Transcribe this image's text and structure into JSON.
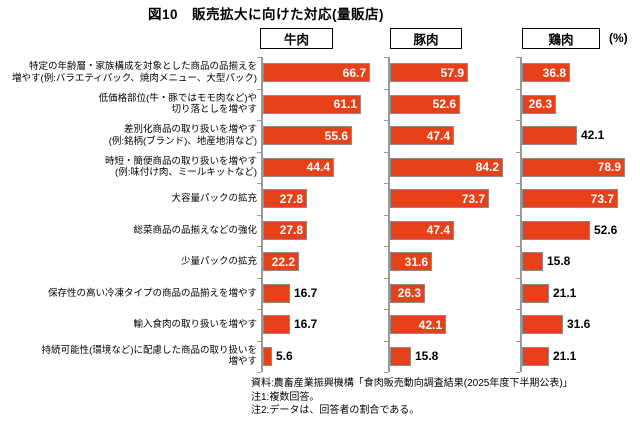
{
  "title": "図10　販売拡大に向けた対応(量販店)",
  "unit_label": "(%)",
  "chart_data": {
    "type": "bar",
    "orientation": "horizontal",
    "value_unit": "%",
    "xlim": [
      0,
      100
    ],
    "grid": false,
    "legend_position": "top",
    "bar_color": "#E64119",
    "bar_border_color": "#8C8C8C",
    "axis_color": "#999999",
    "categories": [
      "特定の年齢層・家族構成を対象とした商品の品揃えを増やす(例:バラエティパック、焼肉メニュー、大型パック)",
      "低価格部位(牛・豚ではモモ肉など)や切り落としを増やす",
      "差別化商品の取り扱いを増やす(例:銘柄(ブランド)、地産地消など)",
      "時短・簡便商品の取り扱いを増やす(例:味付け肉、ミールキットなど)",
      "大容量パックの拡充",
      "総菜商品の品揃えなどの強化",
      "少量パックの拡充",
      "保存性の高い冷凍タイプの商品の品揃えを増やす",
      "輸入食肉の取り扱いを増やす",
      "持続可能性(環境など)に配慮した商品の取り扱いを増やす"
    ],
    "category_lines": [
      [
        "特定の年齢層・家族構成を対象とした商品の品揃えを",
        "増やす(例:バラエティパック、焼肉メニュー、大型パック)"
      ],
      [
        "低価格部位(牛・豚ではモモ肉など)や",
        "切り落としを増やす"
      ],
      [
        "差別化商品の取り扱いを増やす",
        "(例:銘柄(ブランド)、地産地消など)"
      ],
      [
        "時短・簡便商品の取り扱いを増やす",
        "(例:味付け肉、ミールキットなど)"
      ],
      [
        "大容量パックの拡充"
      ],
      [
        "総菜商品の品揃えなどの強化"
      ],
      [
        "少量パックの拡充"
      ],
      [
        "保存性の高い冷凍タイプの商品の品揃えを増やす"
      ],
      [
        "輸入食肉の取り扱いを増やす"
      ],
      [
        "持続可能性(環境など)に配慮した商品の取り扱いを",
        "増やす"
      ]
    ],
    "series": [
      {
        "name": "牛肉",
        "values": [
          66.7,
          61.1,
          55.6,
          44.4,
          27.8,
          27.8,
          22.2,
          16.7,
          16.7,
          5.6
        ],
        "label_inside": [
          true,
          true,
          true,
          true,
          true,
          true,
          true,
          false,
          false,
          false
        ]
      },
      {
        "name": "豚肉",
        "values": [
          57.9,
          52.6,
          47.4,
          84.2,
          73.7,
          47.4,
          31.6,
          26.3,
          42.1,
          15.8
        ],
        "label_inside": [
          true,
          true,
          true,
          true,
          true,
          true,
          true,
          true,
          true,
          false
        ]
      },
      {
        "name": "鶏肉",
        "values": [
          36.8,
          26.3,
          42.1,
          78.9,
          73.7,
          52.6,
          15.8,
          21.1,
          31.6,
          21.1
        ],
        "label_inside": [
          true,
          true,
          false,
          true,
          true,
          false,
          false,
          false,
          false,
          false
        ]
      }
    ]
  },
  "footer": {
    "source": "資料:農畜産業振興機構「食肉販売動向調査結果(2025年度下半期公表)」",
    "note1": "注1:複数回答。",
    "note2": "注2:データは、回答者の割合である。"
  }
}
